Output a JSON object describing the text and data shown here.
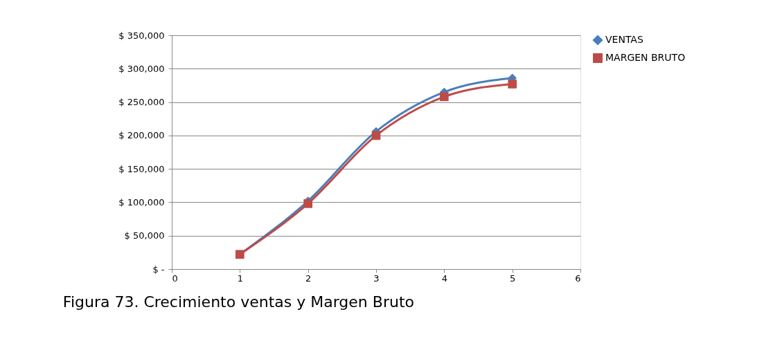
{
  "chart_data": {
    "type": "line",
    "x": [
      1,
      2,
      3,
      4,
      5
    ],
    "series": [
      {
        "name": "VENTAS",
        "color": "#4a7ebb",
        "marker": "diamond",
        "values": [
          22000,
          102000,
          206000,
          265000,
          286000
        ]
      },
      {
        "name": "MARGEN BRUTO",
        "color": "#be4b48",
        "marker": "square",
        "values": [
          22000,
          98000,
          200000,
          258000,
          277000
        ]
      }
    ],
    "xlim": [
      0,
      6
    ],
    "xticks": [
      0,
      1,
      2,
      3,
      4,
      5,
      6
    ],
    "ylim": [
      0,
      350000
    ],
    "yticks": [
      {
        "value": 0,
        "label": "$ -"
      },
      {
        "value": 50000,
        "label": "$ 50,000"
      },
      {
        "value": 100000,
        "label": "$ 100,000"
      },
      {
        "value": 150000,
        "label": "$ 150,000"
      },
      {
        "value": 200000,
        "label": "$ 200,000"
      },
      {
        "value": 250000,
        "label": "$ 250,000"
      },
      {
        "value": 300000,
        "label": "$ 300,000"
      },
      {
        "value": 350000,
        "label": "$ 350,000"
      }
    ],
    "grid": "y",
    "legend": "right",
    "line_style": "solid",
    "annotations": [
      "Figura 73. Crecimiento ventas y Margen Bruto"
    ]
  }
}
